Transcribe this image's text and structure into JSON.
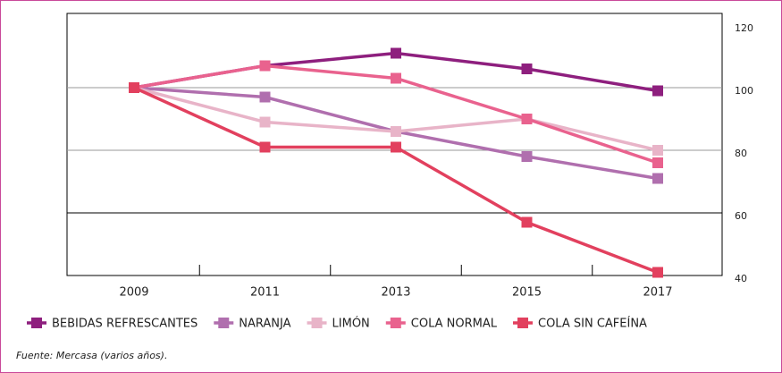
{
  "chart_data": {
    "type": "line",
    "categories": [
      "2009",
      "2011",
      "2013",
      "2015",
      "2017"
    ],
    "series": [
      {
        "name": "BEBIDAS REFRESCANTES",
        "color": "#8e1f7e",
        "values": [
          100,
          107,
          111,
          106,
          99
        ]
      },
      {
        "name": "NARANJA",
        "color": "#b06fae",
        "values": [
          100,
          97,
          86,
          78,
          71
        ]
      },
      {
        "name": "LIMÓN",
        "color": "#e8b4c8",
        "values": [
          100,
          89,
          86,
          90,
          80
        ]
      },
      {
        "name": "COLA NORMAL",
        "color": "#e9628e",
        "values": [
          100,
          107,
          103,
          90,
          76
        ]
      },
      {
        "name": "COLA SIN CAFEÍNA",
        "color": "#e2405e",
        "values": [
          100,
          81,
          81,
          57,
          41
        ]
      }
    ],
    "ylim": [
      40,
      120
    ],
    "yticks": [
      40,
      60,
      80,
      100,
      120
    ],
    "grid": true,
    "source": "Fuente: Mercasa (varios años)."
  }
}
